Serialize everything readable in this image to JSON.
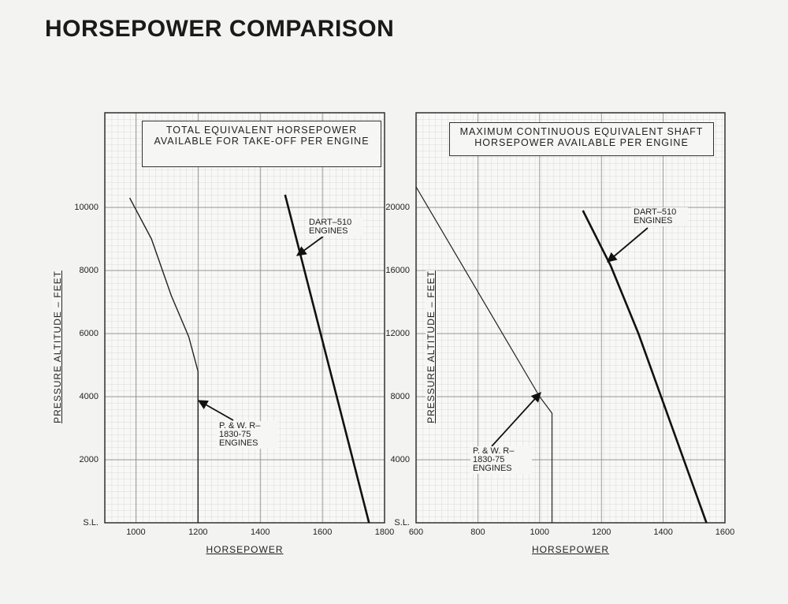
{
  "title": "HORSEPOWER COMPARISON",
  "chart_data": [
    {
      "type": "line",
      "title": "TOTAL EQUIVALENT HORSEPOWER AVAILABLE FOR TAKE-OFF PER ENGINE",
      "xlabel": "HORSEPOWER",
      "ylabel": "PRESSURE ALTITUDE – FEET",
      "xlim": [
        900,
        1800
      ],
      "xticks": [
        1000,
        1200,
        1400,
        1600,
        1800
      ],
      "ylim": [
        0,
        13000
      ],
      "yticks": [
        {
          "value": 0,
          "label": "S.L."
        },
        2000,
        4000,
        6000,
        8000,
        10000
      ],
      "grid": true,
      "series": [
        {
          "name": "P. & W. R–1830-75 ENGINES",
          "color": "#222222",
          "x": [
            980,
            1050,
            1114,
            1170,
            1200,
            1200
          ],
          "values": [
            10300,
            9000,
            7200,
            5900,
            4800,
            0
          ]
        },
        {
          "name": "DART–510 ENGINES",
          "color": "#111111",
          "x": [
            1480,
            1750
          ],
          "values": [
            10400,
            0
          ]
        }
      ]
    },
    {
      "type": "line",
      "title": "MAXIMUM CONTINUOUS EQUIVALENT SHAFT HORSEPOWER AVAILABLE PER ENGINE",
      "xlabel": "HORSEPOWER",
      "ylabel": "PRESSURE ALTITUDE – FEET",
      "xlim": [
        600,
        1600
      ],
      "xticks": [
        600,
        800,
        1000,
        1200,
        1400,
        1600
      ],
      "ylim": [
        0,
        26000
      ],
      "yticks": [
        {
          "value": 0,
          "label": "S.L."
        },
        4000,
        8000,
        12000,
        16000,
        20000
      ],
      "grid": true,
      "series": [
        {
          "name": "P. & W. R–1830-75 ENGINES",
          "color": "#222222",
          "x": [
            600,
            1000,
            1040,
            1040
          ],
          "values": [
            21300,
            8000,
            6950,
            0
          ]
        },
        {
          "name": "DART–510 ENGINES",
          "color": "#111111",
          "x": [
            1140,
            1230,
            1320,
            1540
          ],
          "values": [
            19800,
            16300,
            12000,
            0
          ]
        }
      ]
    }
  ]
}
